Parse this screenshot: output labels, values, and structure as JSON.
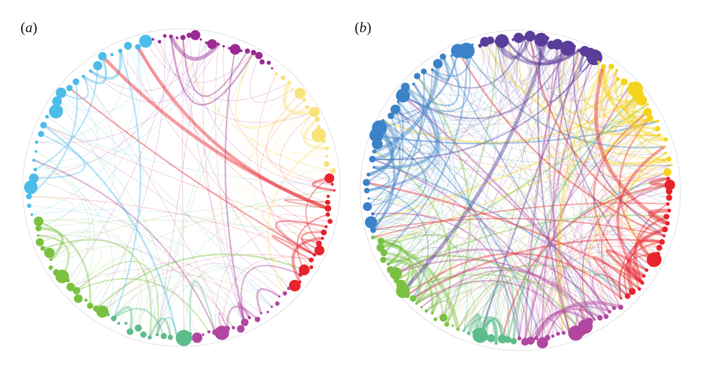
{
  "panels": [
    {
      "label_open": "(",
      "label_letter": "a",
      "label_close": ")",
      "seed": 11,
      "chords_light": 90,
      "chords_mid": 34,
      "chords_thick": 14,
      "groups": [
        {
          "color": "#9b2a94",
          "share": 0.14,
          "nodes": 22
        },
        {
          "color": "#f9e27a",
          "share": 0.13,
          "nodes": 16
        },
        {
          "color": "#e8232c",
          "share": 0.13,
          "nodes": 20
        },
        {
          "color": "#b2479f",
          "share": 0.12,
          "nodes": 18
        },
        {
          "color": "#5cbc8a",
          "share": 0.1,
          "nodes": 14
        },
        {
          "color": "#7ac142",
          "share": 0.13,
          "nodes": 18
        },
        {
          "color": "#4bbde8",
          "share": 0.25,
          "nodes": 26
        }
      ]
    },
    {
      "label_open": "(",
      "label_letter": "b",
      "label_close": ")",
      "seed": 29,
      "chords_light": 230,
      "chords_mid": 120,
      "chords_thick": 40,
      "groups": [
        {
          "color": "#5a3d9a",
          "share": 0.13,
          "nodes": 22
        },
        {
          "color": "#f6d31c",
          "share": 0.15,
          "nodes": 22
        },
        {
          "color": "#e8232c",
          "share": 0.15,
          "nodes": 22
        },
        {
          "color": "#b2479f",
          "share": 0.12,
          "nodes": 20
        },
        {
          "color": "#5cbc8a",
          "share": 0.06,
          "nodes": 10
        },
        {
          "color": "#7ac142",
          "share": 0.14,
          "nodes": 22
        },
        {
          "color": "#3b82c9",
          "share": 0.25,
          "nodes": 30
        }
      ]
    }
  ]
}
